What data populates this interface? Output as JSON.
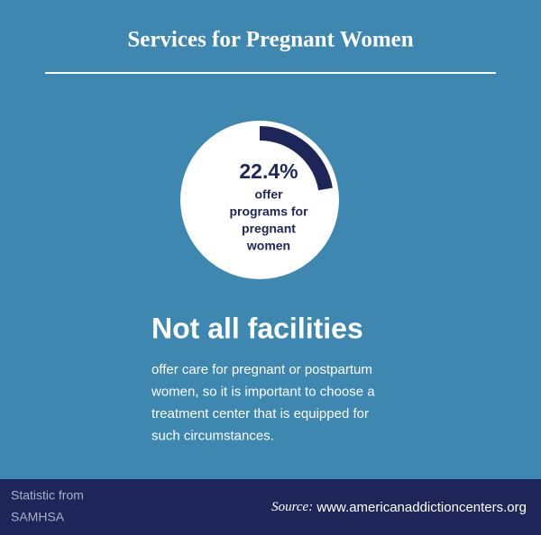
{
  "chart_data": {
    "type": "radial",
    "title": "Services for Pregnant Women",
    "value": 22.4,
    "value_label": "22.4%",
    "max": 100,
    "color": "#1e2659",
    "track_color": "#ffffff",
    "label_lines": [
      "offer",
      "programs for",
      "pregnant",
      "women"
    ],
    "headline": "Not all facilities",
    "body_lines": [
      "offer care for pregnant or postpartum",
      "women, so it is important to choose a",
      "treatment center that is equipped for",
      "such circumstances."
    ],
    "credit_lines": [
      "Statistic from",
      "SAMHSA"
    ],
    "source_prefix": "Source:",
    "source": "www.americanaddictioncenters.org"
  }
}
